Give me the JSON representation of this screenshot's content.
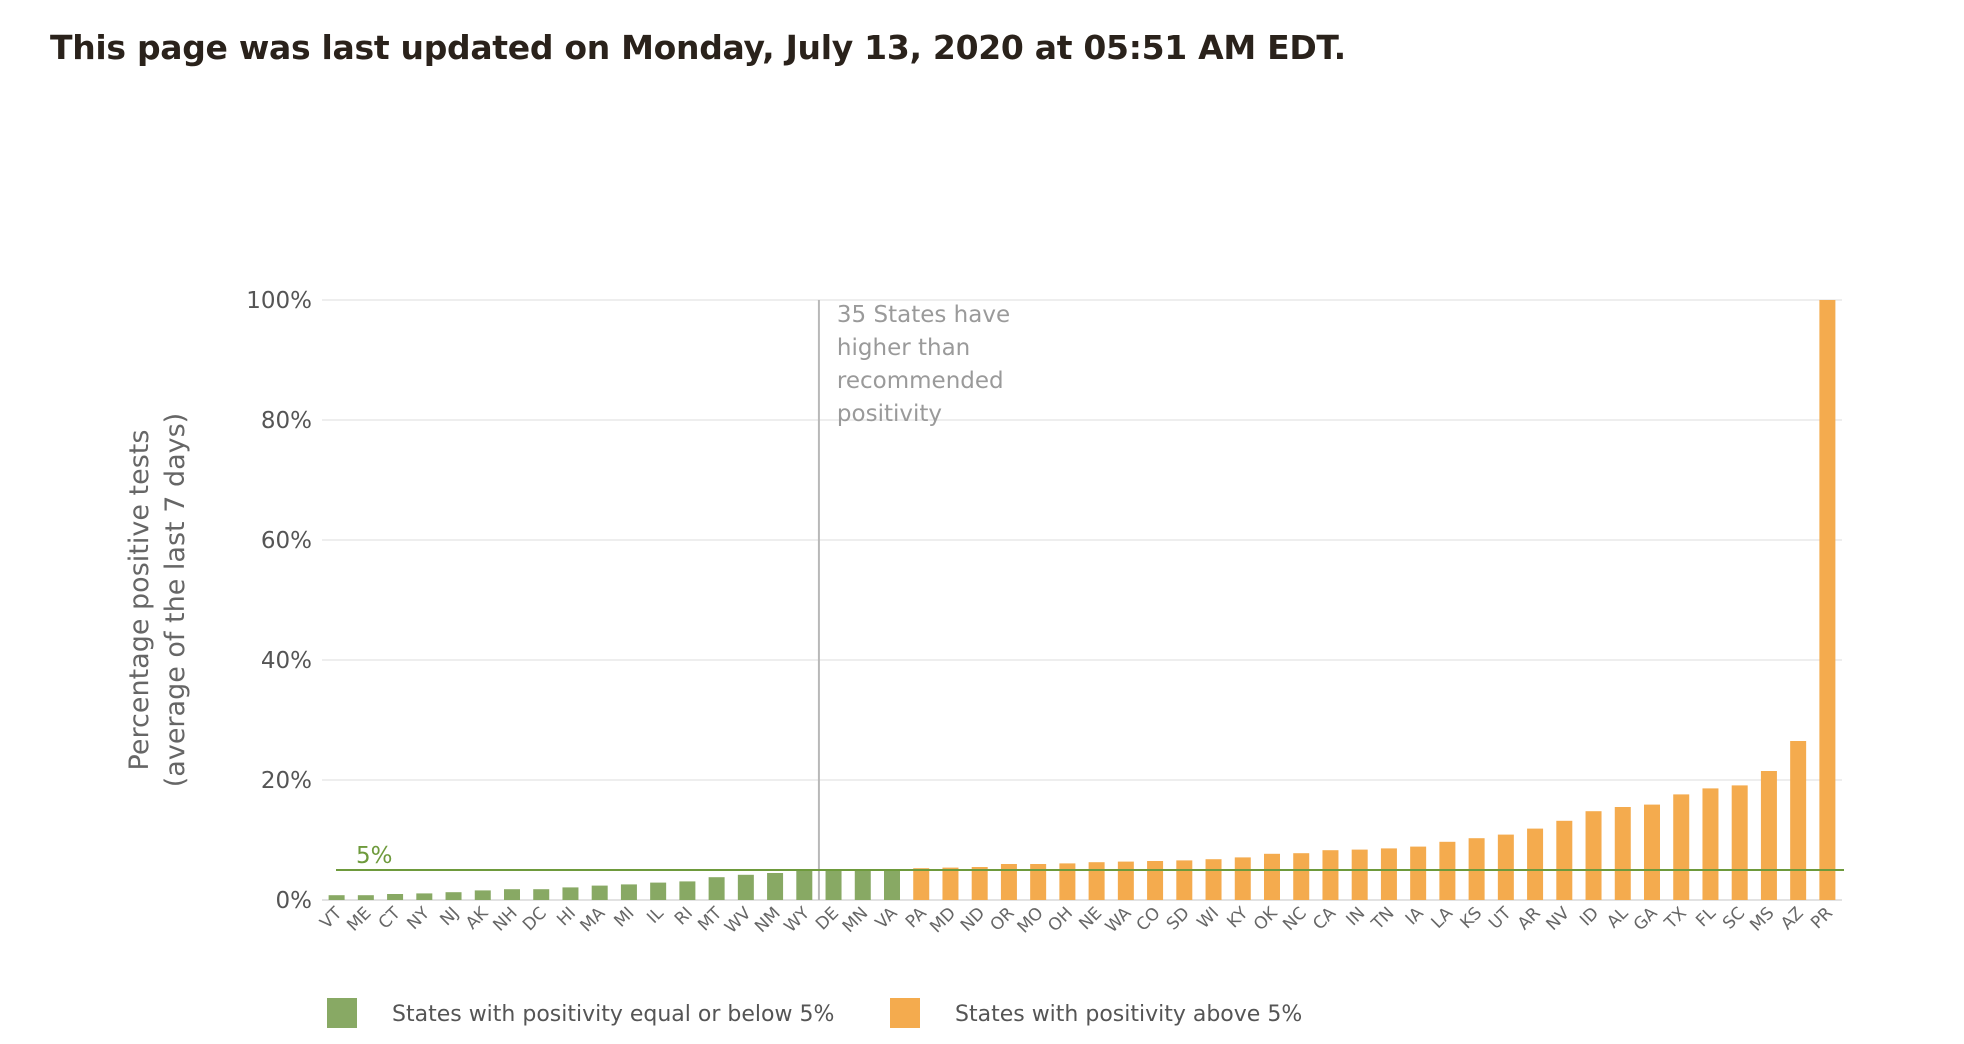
{
  "header": {
    "updated_text": "This page was last updated on Monday, July 13, 2020 at 05:51 AM EDT."
  },
  "chart_data": {
    "type": "bar",
    "ylabel_line1": "Percentage positive tests",
    "ylabel_line2": "(average of the last 7 days)",
    "ylim": [
      0,
      100
    ],
    "yticks": [
      0,
      20,
      40,
      60,
      80,
      100
    ],
    "ytick_labels": [
      "0%",
      "20%",
      "40%",
      "60%",
      "80%",
      "100%"
    ],
    "grid": true,
    "threshold": {
      "value": 5,
      "label": "5%",
      "color": "#6e9a3c"
    },
    "annotation": {
      "lines": [
        "35 States have",
        "higher than",
        "recommended",
        "positivity"
      ],
      "after_category": "WY"
    },
    "colors": {
      "below": "#88a964",
      "above": "#f4ab4e"
    },
    "legend": [
      {
        "label": "States with positivity equal or below 5%",
        "color": "#88a964"
      },
      {
        "label": "States with positivity above 5%",
        "color": "#f4ab4e"
      }
    ],
    "legend_position": "bottom",
    "categories": [
      "VT",
      "ME",
      "CT",
      "NY",
      "NJ",
      "AK",
      "NH",
      "DC",
      "HI",
      "MA",
      "MI",
      "IL",
      "RI",
      "MT",
      "WV",
      "NM",
      "WY",
      "DE",
      "MN",
      "VA",
      "PA",
      "MD",
      "ND",
      "OR",
      "MO",
      "OH",
      "NE",
      "WA",
      "CO",
      "SD",
      "WI",
      "KY",
      "OK",
      "NC",
      "CA",
      "IN",
      "TN",
      "IA",
      "LA",
      "KS",
      "UT",
      "AR",
      "NV",
      "ID",
      "AL",
      "GA",
      "TX",
      "FL",
      "SC",
      "MS",
      "AZ",
      "PR"
    ],
    "values": [
      0.8,
      0.8,
      1.0,
      1.1,
      1.3,
      1.6,
      1.8,
      1.8,
      2.1,
      2.4,
      2.6,
      2.9,
      3.1,
      3.8,
      4.2,
      4.5,
      5.0,
      5.0,
      5.0,
      5.0,
      5.3,
      5.4,
      5.5,
      6.0,
      6.0,
      6.1,
      6.3,
      6.4,
      6.5,
      6.6,
      6.8,
      7.1,
      7.7,
      7.8,
      8.3,
      8.4,
      8.6,
      8.9,
      9.7,
      10.3,
      10.9,
      11.9,
      13.2,
      14.8,
      15.5,
      15.9,
      17.6,
      18.6,
      19.1,
      21.5,
      26.5,
      100.0
    ]
  }
}
